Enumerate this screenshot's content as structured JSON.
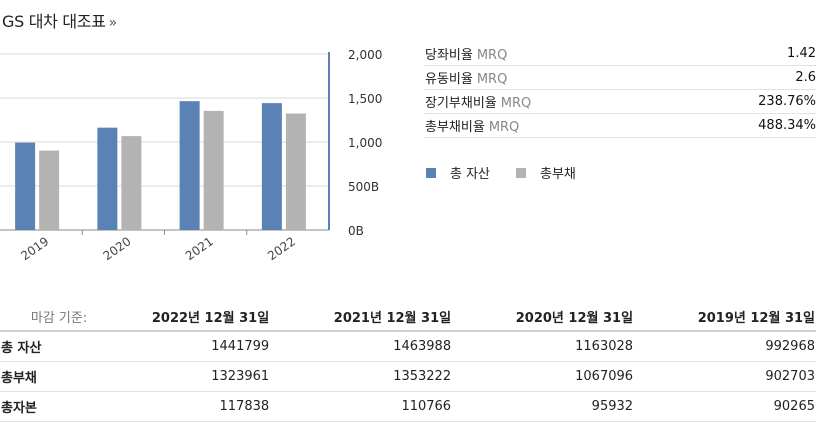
{
  "header": {
    "title": "GS 대차 대조표",
    "arrow": "»"
  },
  "ratios": [
    {
      "label": "당좌비율",
      "basis": "MRQ",
      "value": "1.42"
    },
    {
      "label": "유동비율",
      "basis": "MRQ",
      "value": "2.6"
    },
    {
      "label": "장기부채비율",
      "basis": "MRQ",
      "value": "238.76%"
    },
    {
      "label": "총부채비율",
      "basis": "MRQ",
      "value": "488.34%"
    }
  ],
  "legend": [
    {
      "label": "총 자산",
      "color": "#5a82b5"
    },
    {
      "label": "총부채",
      "color": "#b3b3b3"
    }
  ],
  "chart_data": {
    "type": "bar",
    "categories": [
      "2019",
      "2020",
      "2021",
      "2022"
    ],
    "series": [
      {
        "name": "총 자산",
        "color": "#5a82b5",
        "values": [
          992968,
          1163028,
          1463988,
          1441799
        ]
      },
      {
        "name": "총부채",
        "color": "#b3b3b3",
        "values": [
          902703,
          1067096,
          1353222,
          1323961
        ]
      }
    ],
    "y_ticks": [
      "2,000",
      "1,500",
      "1,000",
      "500B",
      "0B"
    ],
    "ylim": [
      0,
      2000000
    ],
    "grid": true,
    "y_axis_position": "right",
    "legend_position": "right"
  },
  "table": {
    "basis_label": "마감 기준:",
    "columns": [
      "2022년 12월 31일",
      "2021년 12월 31일",
      "2020년 12월 31일",
      "2019년 12월 31일"
    ],
    "rows": [
      {
        "label": "총 자산",
        "values": [
          "1441799",
          "1463988",
          "1163028",
          "992968"
        ]
      },
      {
        "label": "총부채",
        "values": [
          "1323961",
          "1353222",
          "1067096",
          "902703"
        ]
      },
      {
        "label": "총자본",
        "values": [
          "117838",
          "110766",
          "95932",
          "90265"
        ]
      }
    ]
  }
}
